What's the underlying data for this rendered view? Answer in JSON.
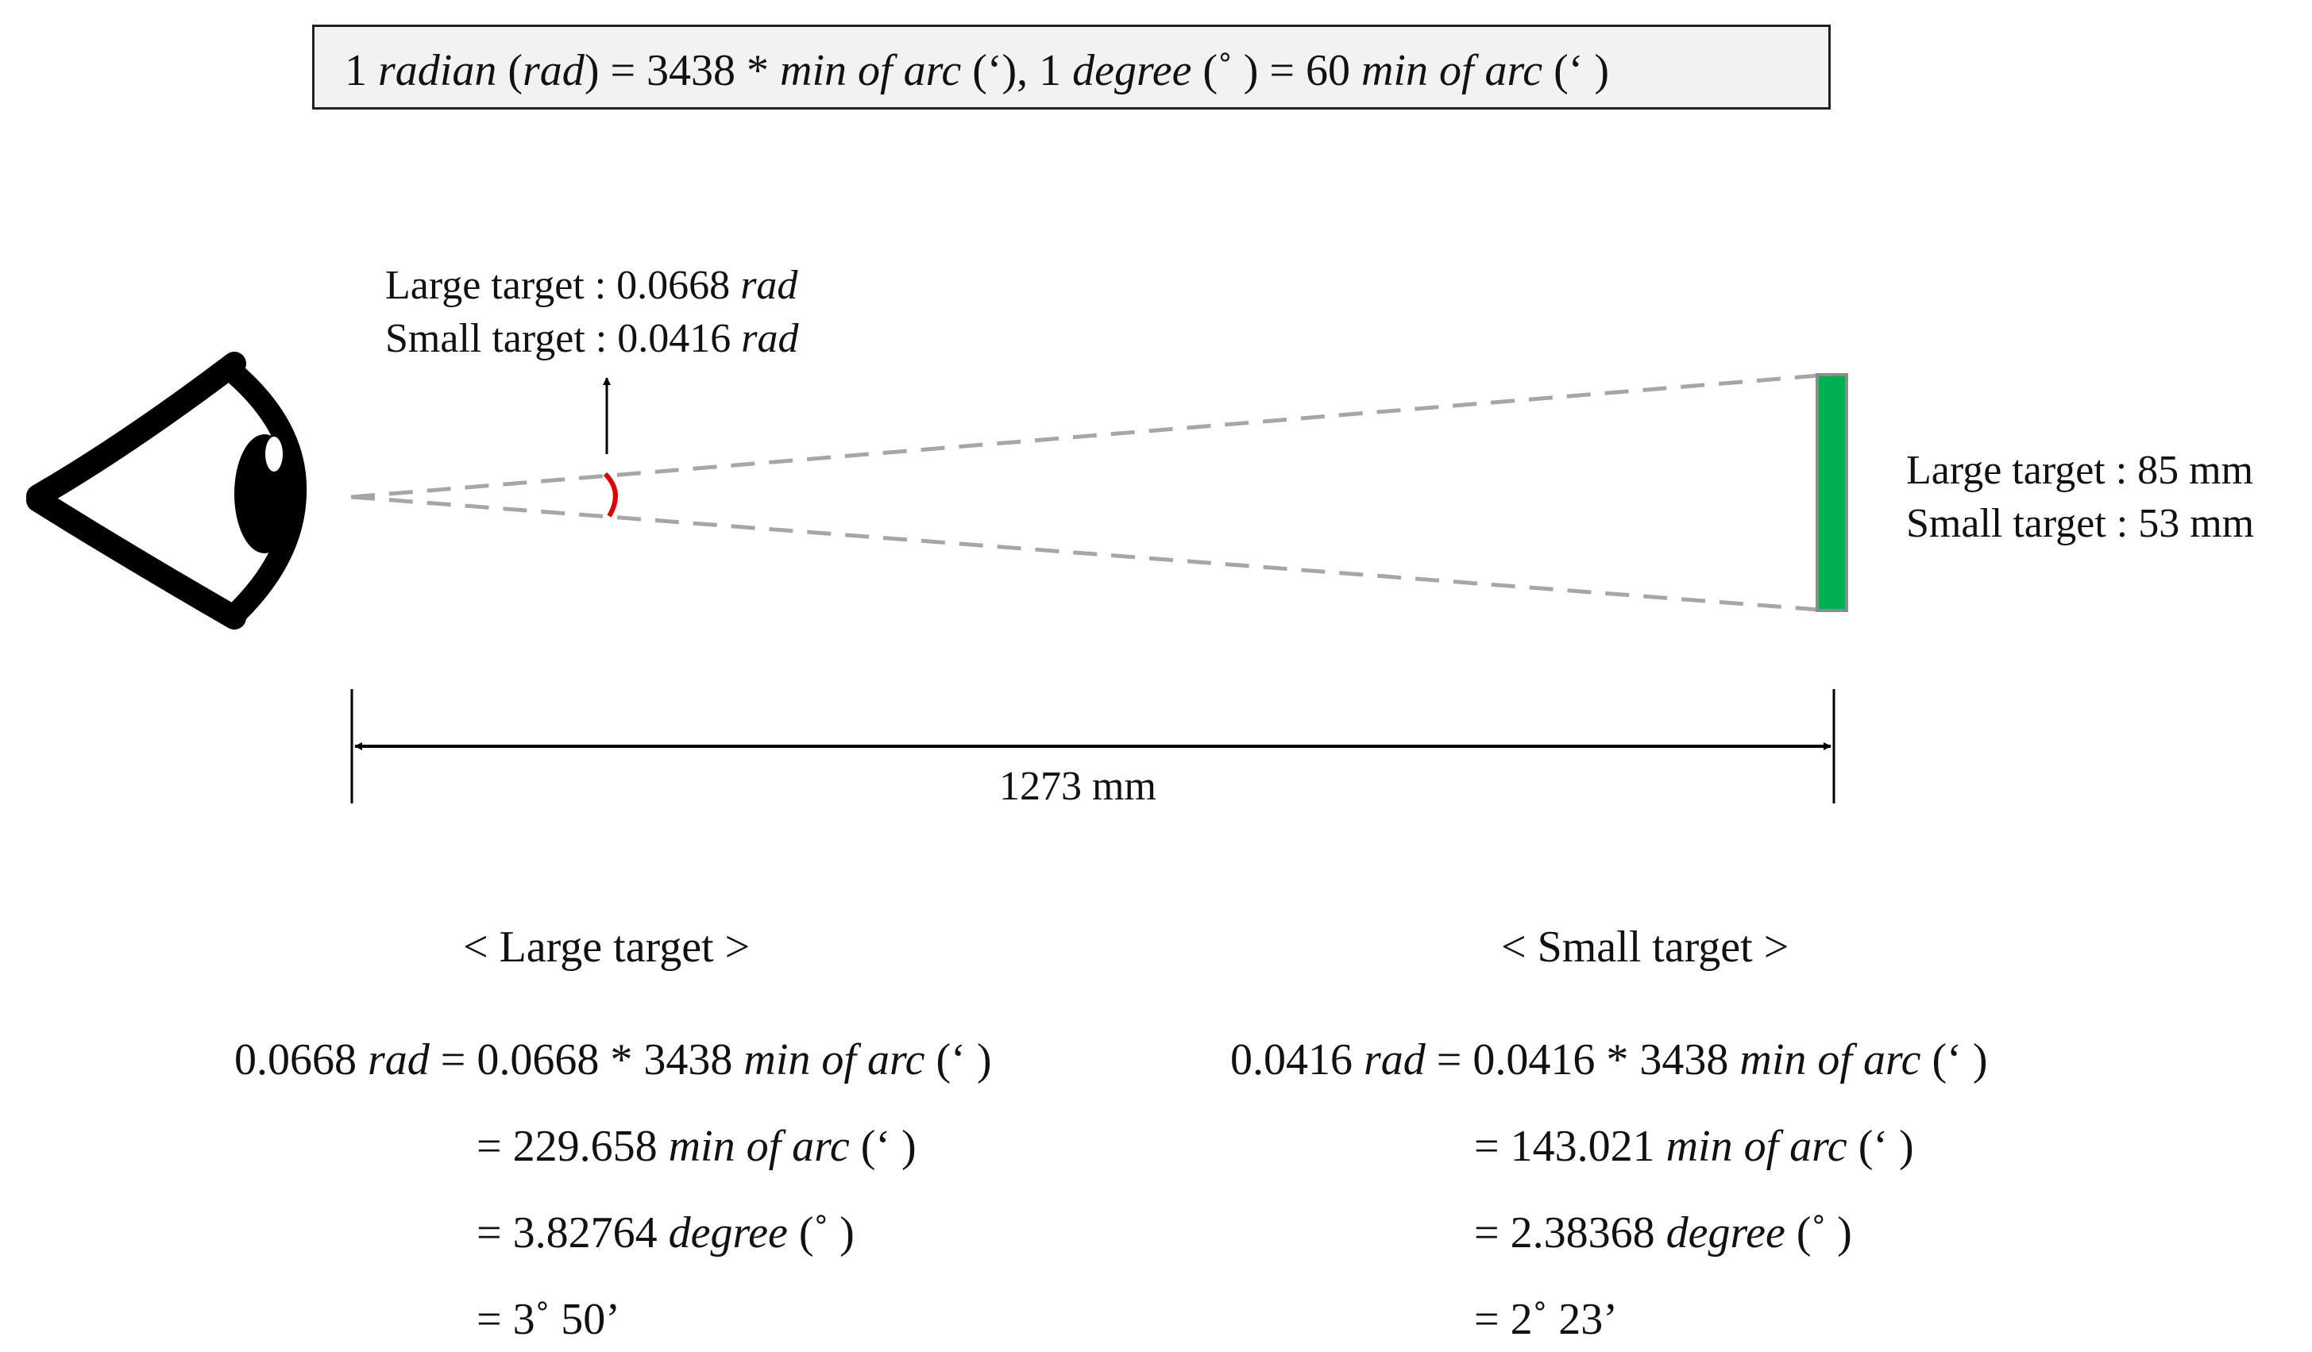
{
  "formula": {
    "n1": "1",
    "radian": "radian",
    "open1": " (",
    "rad": "rad",
    "mid1": ") = 3438 * ",
    "moa1": "min of arc",
    "mid2": " (‘), 1 ",
    "degree": "degree",
    "mid3": " (˚ ) = 60 ",
    "moa2": "min of arc",
    "end": " (‘ )"
  },
  "angle_labels": {
    "large_prefix": "Large target : 0.0668 ",
    "large_unit": "rad",
    "small_prefix": "Small target : 0.0416 ",
    "small_unit": "rad"
  },
  "target_labels": {
    "large": "Large target : 85 mm",
    "small": "Small target : 53 mm"
  },
  "distance": "1273 mm",
  "large_calc": {
    "header": "< Large target >",
    "l1_a": "0.0668 ",
    "l1_rad": "rad",
    "l1_b": " = 0.0668 * 3438 ",
    "l1_moa": "min of arc",
    "l1_c": " (‘ )",
    "l2_a": "= 229.658 ",
    "l2_moa": "min of arc",
    "l2_c": " (‘ )",
    "l3_a": "= 3.82764 ",
    "l3_deg": "degree",
    "l3_c": " (˚ )",
    "l4": "= 3˚ 50’"
  },
  "small_calc": {
    "header": "< Small target >",
    "l1_a": "0.0416 ",
    "l1_rad": "rad",
    "l1_b": " = 0.0416 * 3438 ",
    "l1_moa": "min of arc",
    "l1_c": " (‘ )",
    "l2_a": "= 143.021 ",
    "l2_moa": "min of arc",
    "l2_c": " (‘ )",
    "l3_a": "= 2.38368 ",
    "l3_deg": "degree",
    "l3_c": " (˚ )",
    "l4": "= 2˚ 23’"
  },
  "colors": {
    "target": "#00b050",
    "target_border": "#8c8c8c",
    "sight_lines": "#a6a6a6",
    "angle_arc": "#e00000"
  }
}
